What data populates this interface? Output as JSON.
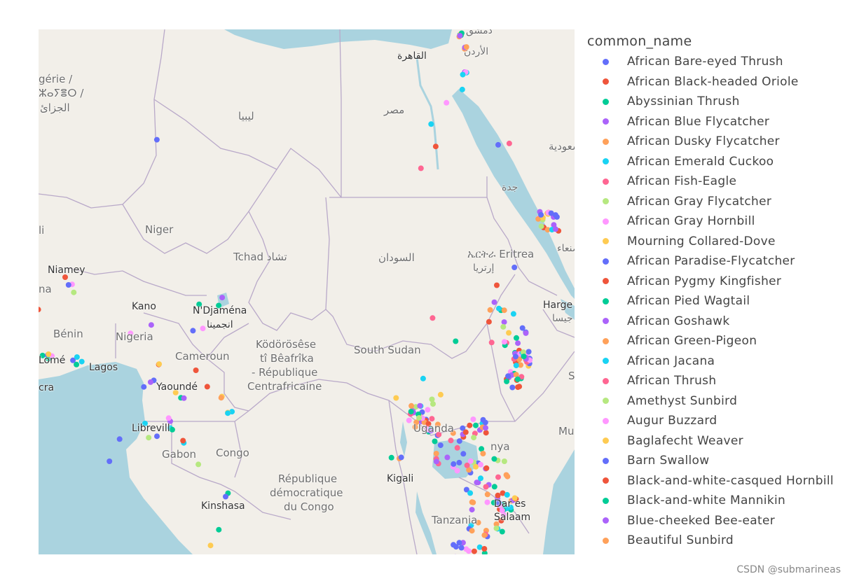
{
  "legend": {
    "title": "common_name",
    "items": [
      {
        "label": "African Bare-eyed Thrush",
        "color": "#636efa"
      },
      {
        "label": "African Black-headed Oriole",
        "color": "#ef553b"
      },
      {
        "label": "Abyssinian Thrush",
        "color": "#00cc96"
      },
      {
        "label": "African Blue Flycatcher",
        "color": "#ab63fa"
      },
      {
        "label": "African Dusky Flycatcher",
        "color": "#ffa15a"
      },
      {
        "label": "African Emerald Cuckoo",
        "color": "#19d3f3"
      },
      {
        "label": "African Fish-Eagle",
        "color": "#ff6692"
      },
      {
        "label": "African Gray Flycatcher",
        "color": "#b6e880"
      },
      {
        "label": "African Gray Hornbill",
        "color": "#ff97ff"
      },
      {
        "label": "Mourning Collared-Dove",
        "color": "#fecb52"
      },
      {
        "label": "African Paradise-Flycatcher",
        "color": "#636efa"
      },
      {
        "label": "African Pygmy Kingfisher",
        "color": "#ef553b"
      },
      {
        "label": "African Pied Wagtail",
        "color": "#00cc96"
      },
      {
        "label": "African Goshawk",
        "color": "#ab63fa"
      },
      {
        "label": "African Green-Pigeon",
        "color": "#ffa15a"
      },
      {
        "label": "African Jacana",
        "color": "#19d3f3"
      },
      {
        "label": "African Thrush",
        "color": "#ff6692"
      },
      {
        "label": "Amethyst Sunbird",
        "color": "#b6e880"
      },
      {
        "label": "Augur Buzzard",
        "color": "#ff97ff"
      },
      {
        "label": "Baglafecht Weaver",
        "color": "#fecb52"
      },
      {
        "label": "Barn Swallow",
        "color": "#636efa"
      },
      {
        "label": "Black-and-white-casqued Hornbill",
        "color": "#ef553b"
      },
      {
        "label": "Black-and-white Mannikin",
        "color": "#00cc96"
      },
      {
        "label": "Blue-cheeked Bee-eater",
        "color": "#ab63fa"
      },
      {
        "label": "Beautiful Sunbird",
        "color": "#ffa15a"
      }
    ]
  },
  "map": {
    "labels": {
      "niger": "Niger",
      "libya": "ليبيا",
      "egypt": "مصر",
      "cairo": "القاهرة",
      "jordan": "الأردن",
      "damascus": "دمشق",
      "algeria_1": "gérie /",
      "algeria_2": "ⵣⴰⵢⴻⵔ /",
      "algeria_3": "الجزائ",
      "li": "li",
      "niamey": "Niamey",
      "na": "na",
      "kano": "Kano",
      "ndjamena": "N'Djaména",
      "ndjamena_ar": "انجمينا",
      "tchad": "Tchad تشاد",
      "sudan": "السودان",
      "eritrea": "ኤርትራ Eritrea",
      "eritrea_ar": "إرتريا",
      "jeddah": "جدة",
      "saudi": "سعودية",
      "sanaa": "صنعاء",
      "hargeisa": "Harge",
      "hargeisa_ar": "جيسا",
      "benin": "Bénin",
      "nigeria": "Nigeria",
      "lome": "Lomé",
      "lagos": "Lagos",
      "accra": "cra",
      "cameroun": "Cameroun",
      "yaounde": "Yaoundé",
      "car_1": "Ködörösêse",
      "car_2": "tî Bêafrîka",
      "car_3": "- République",
      "car_4": "Centrafricaine",
      "south_sudan": "South Sudan",
      "uganda": "Uganda",
      "kenya": "nya",
      "libreville": "Librevill",
      "gabon": "Gabon",
      "congo": "Congo",
      "drc_1": "République",
      "drc_2": "démocratique",
      "drc_3": "du Congo",
      "kigali": "Kigali",
      "kinshasa": "Kinshasa",
      "tanzania": "Tanzania",
      "dar_1": "Dar es",
      "dar_2": "Salaam",
      "mu": "Mu",
      "s": "S"
    },
    "info_icon": "info-icon"
  },
  "credit": "CSDN @submarineas"
}
